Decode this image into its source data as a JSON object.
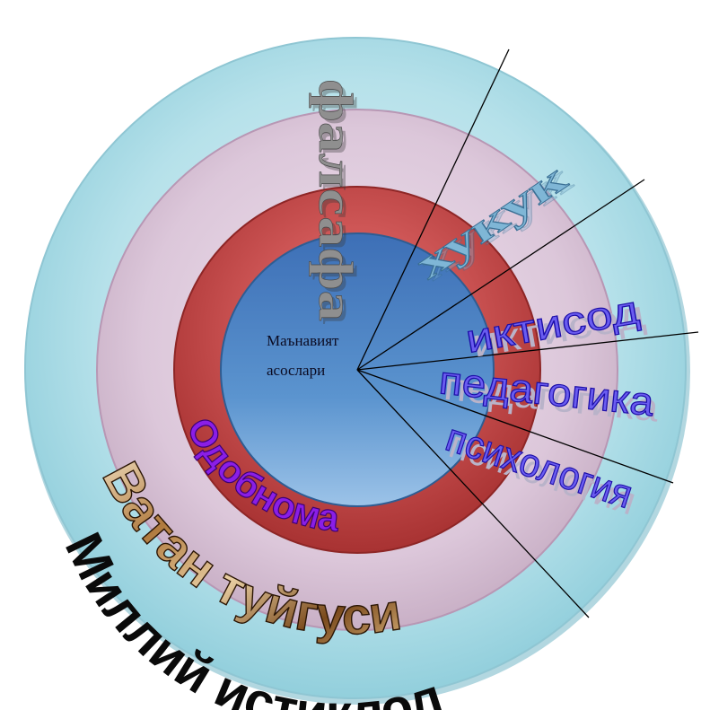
{
  "center": {
    "line1": "Маънавият",
    "line2": "асослари"
  },
  "labels": {
    "falsafa": "фалсафа",
    "huquq": "хукук",
    "iqtisod": "иктисод",
    "pedagogika": "педагогика",
    "psixologiya": "психология",
    "odobnoma": "Одобнома",
    "vatan": "Ватан туйгуси",
    "istiqlol": "Миллий истиклол"
  },
  "colors": {
    "outer_ring": "#a9dce6",
    "lavender_ring": "#ddcadb",
    "red_ring": "#c44a4a",
    "center_disc": "#4f86c6"
  }
}
